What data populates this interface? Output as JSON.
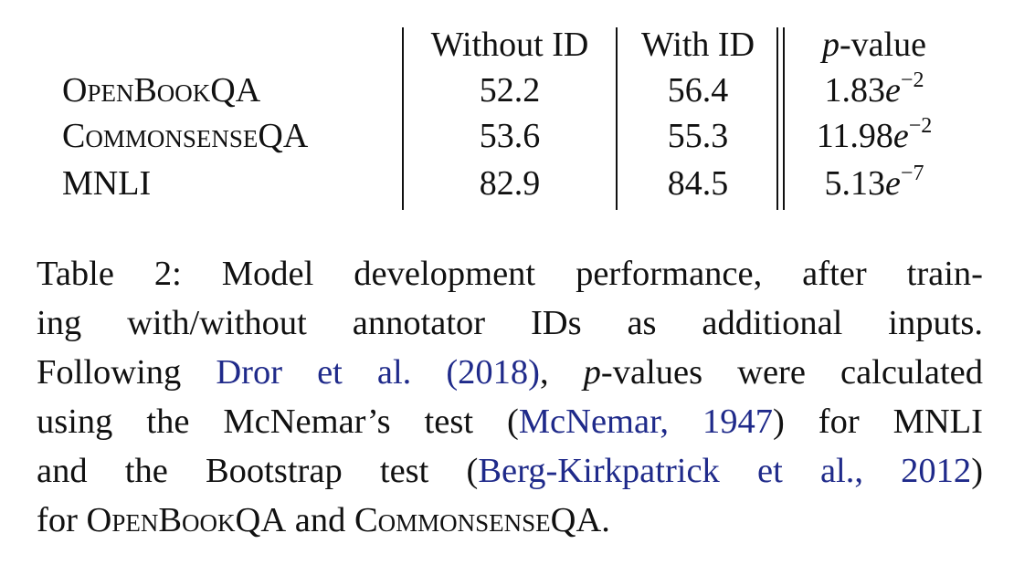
{
  "table": {
    "headers": {
      "without_id": "Without ID",
      "with_id": "With ID",
      "p_value_italic": "p",
      "p_value_rest": "-value"
    },
    "rows": [
      {
        "dataset": "OpenBookQA",
        "without_id": "52.2",
        "with_id": "56.4",
        "p_mantissa": "1.83",
        "p_base": "e",
        "p_exponent": "−2"
      },
      {
        "dataset": "CommonsenseQA",
        "without_id": "53.6",
        "with_id": "55.3",
        "p_mantissa": "11.98",
        "p_base": "e",
        "p_exponent": "−2"
      },
      {
        "dataset": "MNLI",
        "without_id": "82.9",
        "with_id": "84.5",
        "p_mantissa": "5.13",
        "p_base": "e",
        "p_exponent": "−7"
      }
    ]
  },
  "caption": {
    "line1": "Table 2: Model development performance, after train-",
    "line2": "ing with/without annotator IDs as additional inputs.",
    "line3_a": "Following ",
    "line3_cite": "Dror et al. (2018)",
    "line3_b": ", ",
    "line3_p": "p",
    "line3_c": "-values were calculated",
    "line4_a": "using the McNemar’s test (",
    "line4_cite": "McNemar, 1947",
    "line4_b": ") for MNLI",
    "line5_a": "and the Bootstrap test (",
    "line5_cite": "Berg-Kirkpatrick et al., 2012",
    "line5_b": ")",
    "line6_a": "for ",
    "line6_ds1": "OpenBookQA",
    "line6_b": " and ",
    "line6_ds2": "CommonsenseQA",
    "line6_c": "."
  },
  "colors": {
    "text": "#111111",
    "citation": "#1f2a8a",
    "background": "#ffffff"
  }
}
